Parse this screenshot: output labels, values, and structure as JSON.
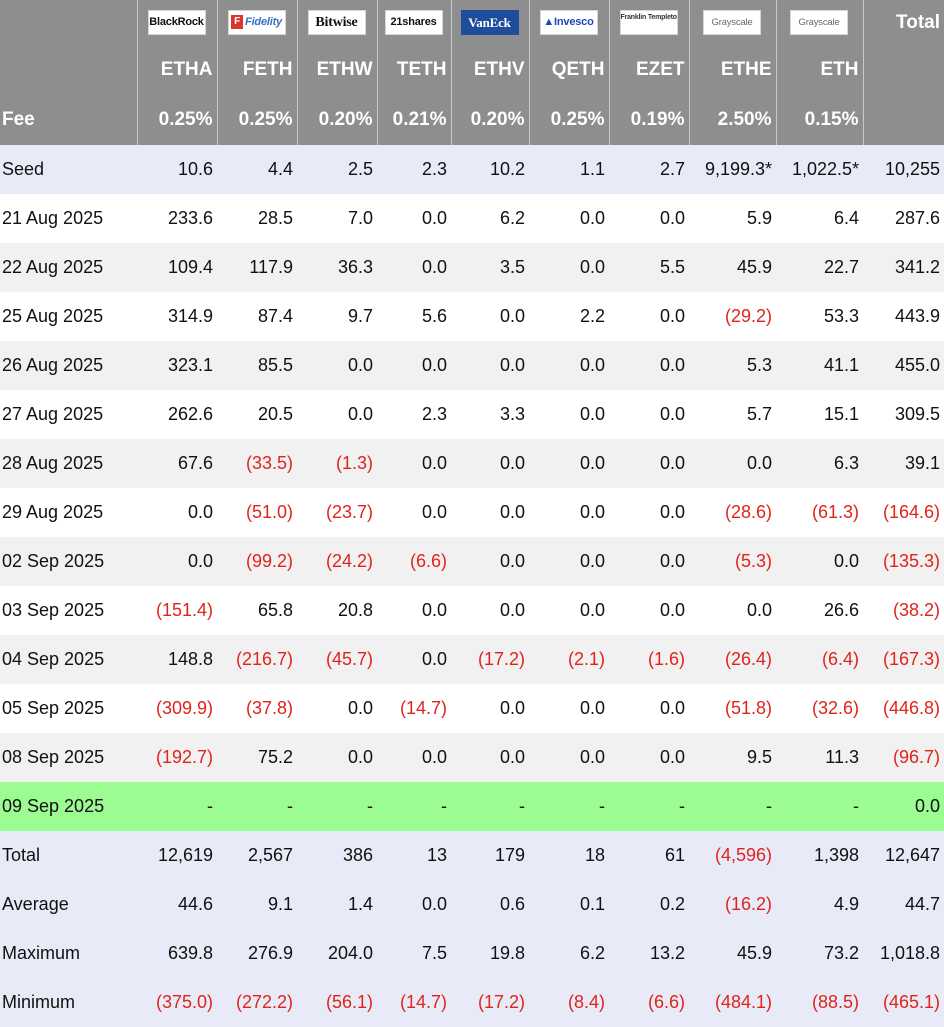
{
  "providers": [
    "BlackRock",
    "Fidelity",
    "Bitwise",
    "21shares",
    "VanEck",
    "Invesco",
    "Franklin Templeton",
    "Grayscale",
    "Grayscale"
  ],
  "header": {
    "total_label": "Total",
    "fee_label": "Fee"
  },
  "tickers": [
    "ETHA",
    "FETH",
    "ETHW",
    "TETH",
    "ETHV",
    "QETH",
    "EZET",
    "ETHE",
    "ETH"
  ],
  "fees": [
    "0.25%",
    "0.25%",
    "0.20%",
    "0.21%",
    "0.20%",
    "0.25%",
    "0.19%",
    "2.50%",
    "0.15%"
  ],
  "rows": [
    {
      "label": "Seed",
      "values": [
        "10.6",
        "4.4",
        "2.5",
        "2.3",
        "10.2",
        "1.1",
        "2.7",
        "9,199.3*",
        "1,022.5*",
        "10,255"
      ]
    },
    {
      "label": "21 Aug 2025",
      "values": [
        "233.6",
        "28.5",
        "7.0",
        "0.0",
        "6.2",
        "0.0",
        "0.0",
        "5.9",
        "6.4",
        "287.6"
      ]
    },
    {
      "label": "22 Aug 2025",
      "values": [
        "109.4",
        "117.9",
        "36.3",
        "0.0",
        "3.5",
        "0.0",
        "5.5",
        "45.9",
        "22.7",
        "341.2"
      ]
    },
    {
      "label": "25 Aug 2025",
      "values": [
        "314.9",
        "87.4",
        "9.7",
        "5.6",
        "0.0",
        "2.2",
        "0.0",
        "(29.2)",
        "53.3",
        "443.9"
      ]
    },
    {
      "label": "26 Aug 2025",
      "values": [
        "323.1",
        "85.5",
        "0.0",
        "0.0",
        "0.0",
        "0.0",
        "0.0",
        "5.3",
        "41.1",
        "455.0"
      ]
    },
    {
      "label": "27 Aug 2025",
      "values": [
        "262.6",
        "20.5",
        "0.0",
        "2.3",
        "3.3",
        "0.0",
        "0.0",
        "5.7",
        "15.1",
        "309.5"
      ]
    },
    {
      "label": "28 Aug 2025",
      "values": [
        "67.6",
        "(33.5)",
        "(1.3)",
        "0.0",
        "0.0",
        "0.0",
        "0.0",
        "0.0",
        "6.3",
        "39.1"
      ]
    },
    {
      "label": "29 Aug 2025",
      "values": [
        "0.0",
        "(51.0)",
        "(23.7)",
        "0.0",
        "0.0",
        "0.0",
        "0.0",
        "(28.6)",
        "(61.3)",
        "(164.6)"
      ]
    },
    {
      "label": "02 Sep 2025",
      "values": [
        "0.0",
        "(99.2)",
        "(24.2)",
        "(6.6)",
        "0.0",
        "0.0",
        "0.0",
        "(5.3)",
        "0.0",
        "(135.3)"
      ]
    },
    {
      "label": "03 Sep 2025",
      "values": [
        "(151.4)",
        "65.8",
        "20.8",
        "0.0",
        "0.0",
        "0.0",
        "0.0",
        "0.0",
        "26.6",
        "(38.2)"
      ]
    },
    {
      "label": "04 Sep 2025",
      "values": [
        "148.8",
        "(216.7)",
        "(45.7)",
        "0.0",
        "(17.2)",
        "(2.1)",
        "(1.6)",
        "(26.4)",
        "(6.4)",
        "(167.3)"
      ]
    },
    {
      "label": "05 Sep 2025",
      "values": [
        "(309.9)",
        "(37.8)",
        "0.0",
        "(14.7)",
        "0.0",
        "0.0",
        "0.0",
        "(51.8)",
        "(32.6)",
        "(446.8)"
      ]
    },
    {
      "label": "08 Sep 2025",
      "values": [
        "(192.7)",
        "75.2",
        "0.0",
        "0.0",
        "0.0",
        "0.0",
        "0.0",
        "9.5",
        "11.3",
        "(96.7)"
      ]
    },
    {
      "label": "09 Sep 2025",
      "values": [
        "-",
        "-",
        "-",
        "-",
        "-",
        "-",
        "-",
        "-",
        "-",
        "0.0"
      ]
    }
  ],
  "summary": [
    {
      "label": "Total",
      "values": [
        "12,619",
        "2,567",
        "386",
        "13",
        "179",
        "18",
        "61",
        "(4,596)",
        "1,398",
        "12,647"
      ]
    },
    {
      "label": "Average",
      "values": [
        "44.6",
        "9.1",
        "1.4",
        "0.0",
        "0.6",
        "0.1",
        "0.2",
        "(16.2)",
        "4.9",
        "44.7"
      ]
    },
    {
      "label": "Maximum",
      "values": [
        "639.8",
        "276.9",
        "204.0",
        "7.5",
        "19.8",
        "6.2",
        "13.2",
        "45.9",
        "73.2",
        "1,018.8"
      ]
    },
    {
      "label": "Minimum",
      "values": [
        "(375.0)",
        "(272.2)",
        "(56.1)",
        "(14.7)",
        "(17.2)",
        "(8.4)",
        "(6.6)",
        "(484.1)",
        "(88.5)",
        "(465.1)"
      ]
    }
  ],
  "colors": {
    "header_bg": "#8e8e8e",
    "seed_bg": "#e8ebf7",
    "alt_bg": "#f1f1f1",
    "highlight_bg": "#9cfc94",
    "negative": "#e0231c"
  }
}
